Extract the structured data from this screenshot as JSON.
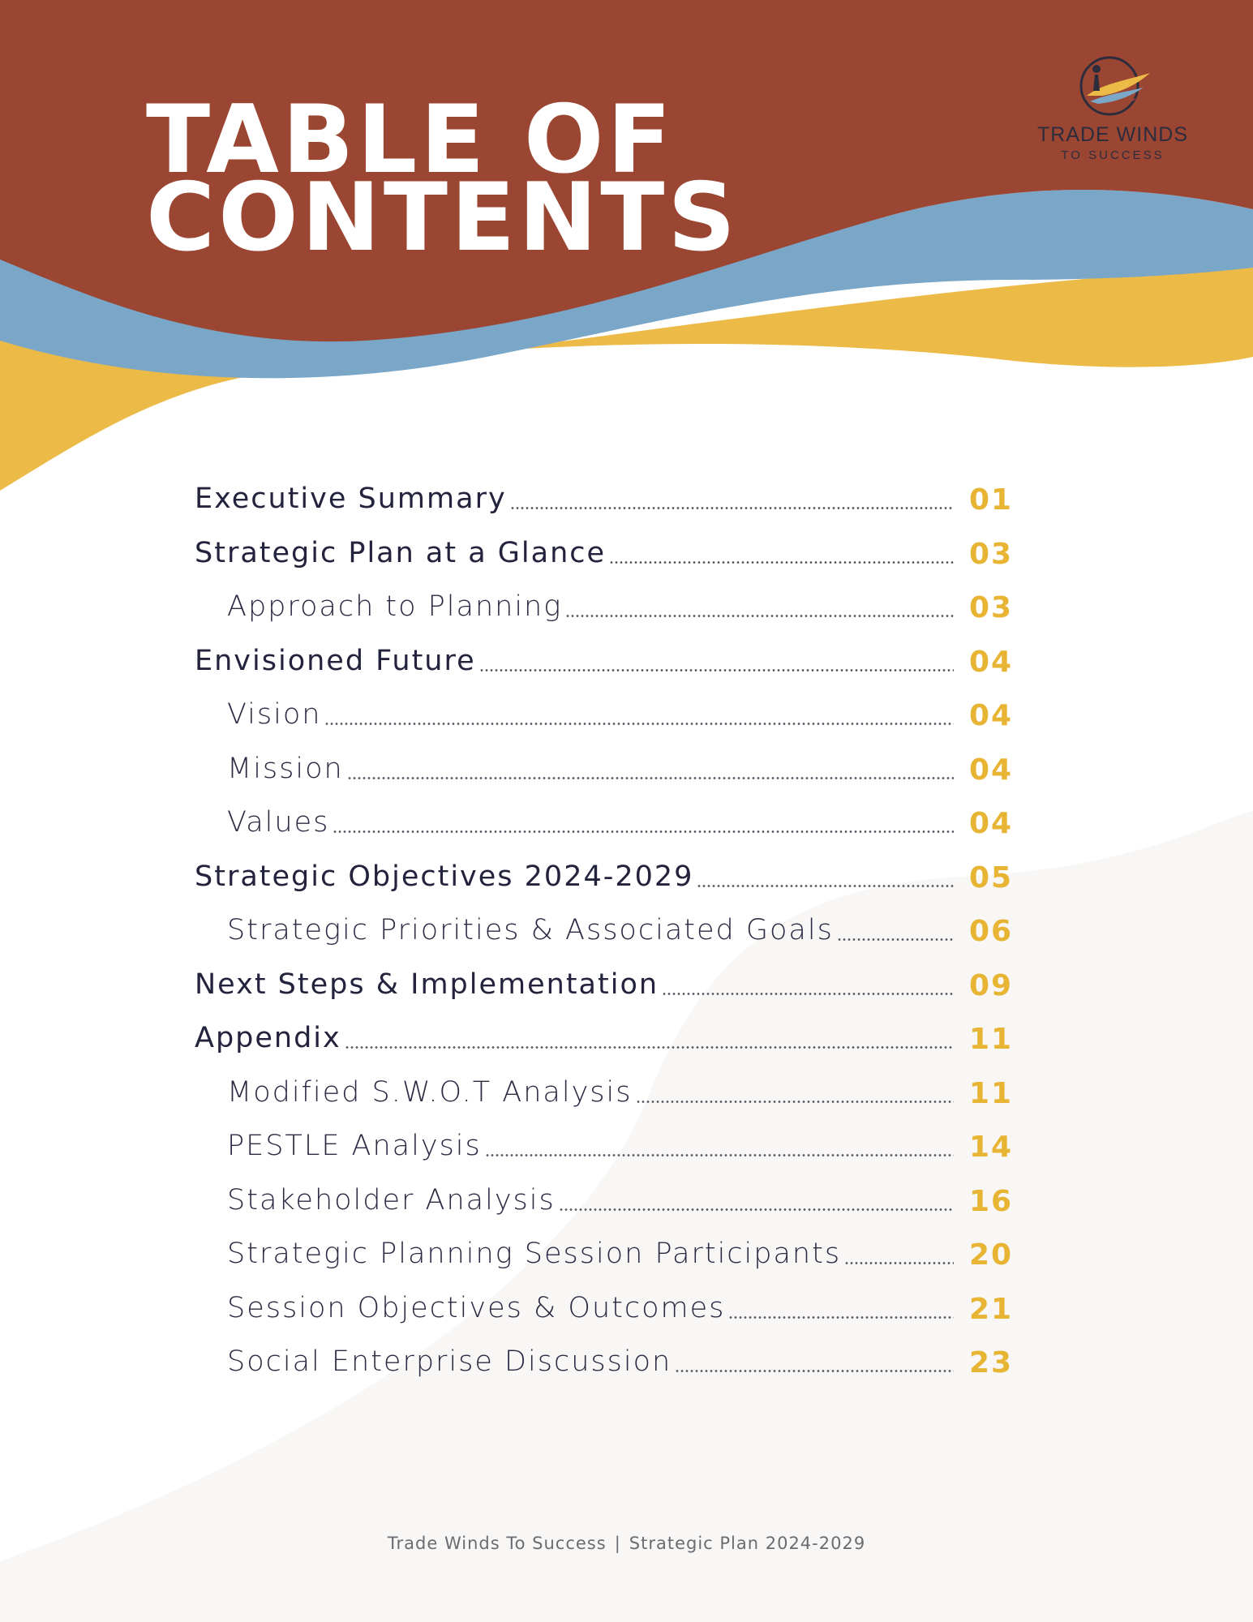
{
  "title": {
    "line1": "TABLE OF",
    "line2": "CONTENTS"
  },
  "logo": {
    "icon": "trade-winds-logo-icon",
    "name": "TRADE WINDS",
    "tagline": "TO SUCCESS"
  },
  "colors": {
    "rust": "#9b4633",
    "blue": "#7aa6c8",
    "gold": "#ecba47",
    "number": "#e8b434",
    "text": "#23233d"
  },
  "toc": [
    {
      "label": "Executive Summary",
      "page": "01",
      "level": 1
    },
    {
      "label": "Strategic Plan at a Glance",
      "page": "03",
      "level": 1
    },
    {
      "label": "Approach to Planning",
      "page": "03",
      "level": 2
    },
    {
      "label": "Envisioned Future",
      "page": "04",
      "level": 1
    },
    {
      "label": "Vision",
      "page": "04",
      "level": 2
    },
    {
      "label": "Mission",
      "page": "04",
      "level": 2
    },
    {
      "label": "Values",
      "page": "04",
      "level": 2
    },
    {
      "label": "Strategic Objectives 2024-2029",
      "page": "05",
      "level": 1
    },
    {
      "label": "Strategic Priorities & Associated Goals",
      "page": "06",
      "level": 2
    },
    {
      "label": "Next Steps & Implementation",
      "page": "09",
      "level": 1
    },
    {
      "label": "Appendix",
      "page": "11",
      "level": 1
    },
    {
      "label": "Modified S.W.O.T Analysis",
      "page": "11",
      "level": 2
    },
    {
      "label": "PESTLE Analysis",
      "page": "14",
      "level": 2
    },
    {
      "label": "Stakeholder Analysis",
      "page": "16",
      "level": 2
    },
    {
      "label": "Strategic Planning Session Participants",
      "page": "20",
      "level": 2
    },
    {
      "label": "Session Objectives & Outcomes",
      "page": "21",
      "level": 2
    },
    {
      "label": "Social Enterprise Discussion",
      "page": "23",
      "level": 2
    }
  ],
  "footer": {
    "org": "Trade Winds To Success",
    "separator": "|",
    "doc": "Strategic Plan 2024-2029"
  }
}
